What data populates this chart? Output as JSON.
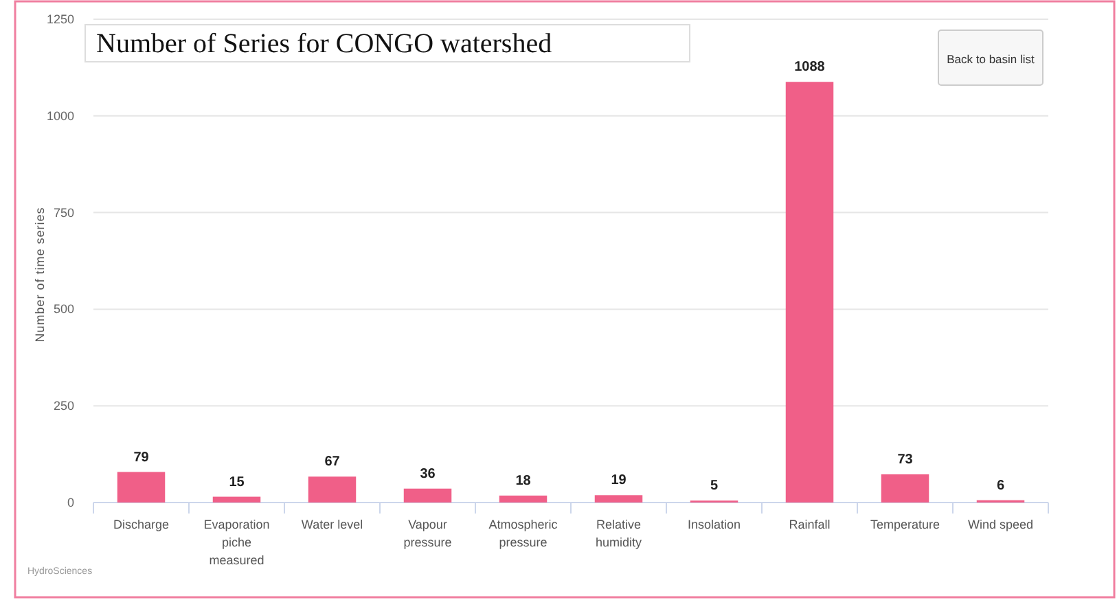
{
  "chart_data": {
    "type": "bar",
    "title": "Number of Series for CONGO watershed",
    "ylabel": "Number of time series",
    "categories": [
      "Discharge",
      "Evaporation piche measured",
      "Water level",
      "Vapour pressure",
      "Atmospheric pressure",
      "Relative humidity",
      "Insolation",
      "Rainfall",
      "Temperature",
      "Wind speed"
    ],
    "values": [
      79,
      15,
      67,
      36,
      18,
      19,
      5,
      1088,
      73,
      6
    ],
    "color": "#f05f88",
    "ylim": [
      0,
      1250
    ],
    "yticks": [
      0,
      250,
      500,
      750,
      1000,
      1250
    ],
    "grid": "y",
    "data_labels": true,
    "annotations": [
      "Back to basin list",
      "HydroSciences"
    ]
  }
}
